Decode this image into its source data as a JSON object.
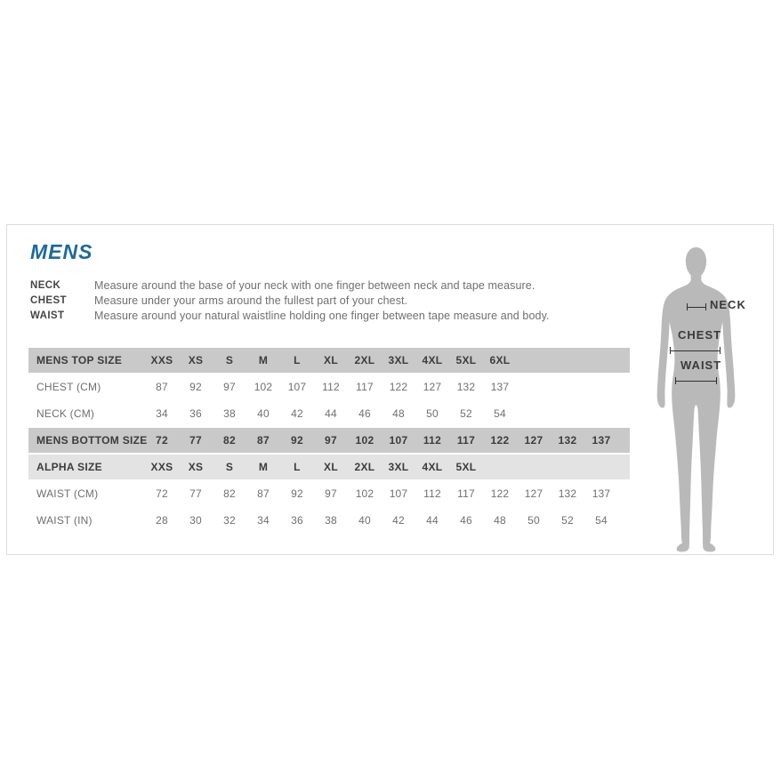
{
  "panel": {
    "title": "MENS",
    "instructions": [
      {
        "label": "NECK",
        "text": "Measure around the base of your neck with one finger between neck and tape measure."
      },
      {
        "label": "CHEST",
        "text": "Measure under your arms around the fullest part of your chest."
      },
      {
        "label": "WAIST",
        "text": "Measure around your natural waistline holding one finger between tape measure and body."
      }
    ]
  },
  "table": {
    "rows": [
      {
        "type": "header",
        "label": "MENS TOP SIZE",
        "values": [
          "XXS",
          "XS",
          "S",
          "M",
          "L",
          "XL",
          "2XL",
          "3XL",
          "4XL",
          "5XL",
          "6XL"
        ]
      },
      {
        "type": "data",
        "label": "CHEST (CM)",
        "values": [
          "87",
          "92",
          "97",
          "102",
          "107",
          "112",
          "117",
          "122",
          "127",
          "132",
          "137"
        ]
      },
      {
        "type": "data",
        "label": "NECK (CM)",
        "values": [
          "34",
          "36",
          "38",
          "40",
          "42",
          "44",
          "46",
          "48",
          "50",
          "52",
          "54"
        ]
      },
      {
        "type": "header",
        "label": "MENS BOTTOM SIZE",
        "values": [
          "72",
          "77",
          "82",
          "87",
          "92",
          "97",
          "102",
          "107",
          "112",
          "117",
          "122",
          "127",
          "132",
          "137"
        ]
      },
      {
        "type": "subheader",
        "label": "ALPHA SIZE",
        "values": [
          "XXS",
          "XS",
          "S",
          "M",
          "L",
          "XL",
          "2XL",
          "3XL",
          "4XL",
          "5XL"
        ]
      },
      {
        "type": "data",
        "label": "WAIST (CM)",
        "values": [
          "72",
          "77",
          "82",
          "87",
          "92",
          "97",
          "102",
          "107",
          "112",
          "117",
          "122",
          "127",
          "132",
          "137"
        ]
      },
      {
        "type": "data",
        "label": "WAIST (IN)",
        "values": [
          "28",
          "30",
          "32",
          "34",
          "36",
          "38",
          "40",
          "42",
          "44",
          "46",
          "48",
          "50",
          "52",
          "54"
        ]
      }
    ]
  },
  "figure": {
    "neck_label": "NECK",
    "chest_label": "CHEST",
    "waist_label": "WAIST"
  },
  "colors": {
    "title_blue": "#1d6a9b",
    "header_gray": "#c9c9c9",
    "subheader_gray": "#e3e3e3",
    "silhouette_gray": "#b9b9b9",
    "border_gray": "#dcdcdc"
  }
}
